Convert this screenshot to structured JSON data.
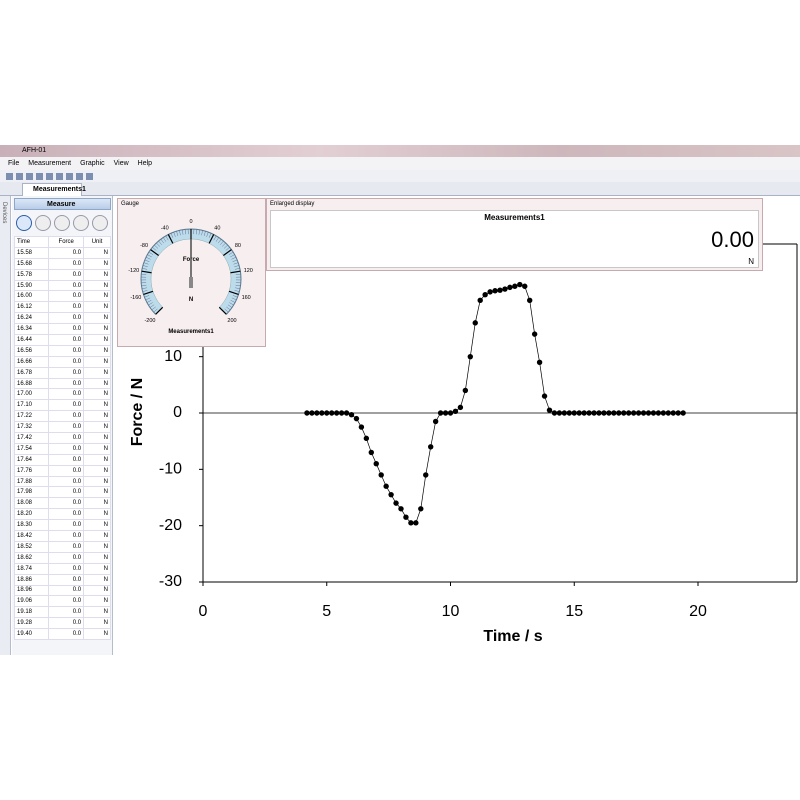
{
  "window": {
    "title": "AFH-01",
    "menu": [
      "File",
      "Measurement",
      "Graphic",
      "View",
      "Help"
    ],
    "tab": "Measurements1",
    "sidebar": "Devices"
  },
  "measure_panel": {
    "label": "Measure",
    "columns": [
      "Time",
      "Force",
      "Unit"
    ],
    "rows": [
      [
        "15.58",
        "0.0",
        "N"
      ],
      [
        "15.68",
        "0.0",
        "N"
      ],
      [
        "15.78",
        "0.0",
        "N"
      ],
      [
        "15.90",
        "0.0",
        "N"
      ],
      [
        "16.00",
        "0.0",
        "N"
      ],
      [
        "16.12",
        "0.0",
        "N"
      ],
      [
        "16.24",
        "0.0",
        "N"
      ],
      [
        "16.34",
        "0.0",
        "N"
      ],
      [
        "16.44",
        "0.0",
        "N"
      ],
      [
        "16.56",
        "0.0",
        "N"
      ],
      [
        "16.66",
        "0.0",
        "N"
      ],
      [
        "16.78",
        "0.0",
        "N"
      ],
      [
        "16.88",
        "0.0",
        "N"
      ],
      [
        "17.00",
        "0.0",
        "N"
      ],
      [
        "17.10",
        "0.0",
        "N"
      ],
      [
        "17.22",
        "0.0",
        "N"
      ],
      [
        "17.32",
        "0.0",
        "N"
      ],
      [
        "17.42",
        "0.0",
        "N"
      ],
      [
        "17.54",
        "0.0",
        "N"
      ],
      [
        "17.64",
        "0.0",
        "N"
      ],
      [
        "17.76",
        "0.0",
        "N"
      ],
      [
        "17.88",
        "0.0",
        "N"
      ],
      [
        "17.98",
        "0.0",
        "N"
      ],
      [
        "18.08",
        "0.0",
        "N"
      ],
      [
        "18.20",
        "0.0",
        "N"
      ],
      [
        "18.30",
        "0.0",
        "N"
      ],
      [
        "18.42",
        "0.0",
        "N"
      ],
      [
        "18.52",
        "0.0",
        "N"
      ],
      [
        "18.62",
        "0.0",
        "N"
      ],
      [
        "18.74",
        "0.0",
        "N"
      ],
      [
        "18.86",
        "0.0",
        "N"
      ],
      [
        "18.96",
        "0.0",
        "N"
      ],
      [
        "19.06",
        "0.0",
        "N"
      ],
      [
        "19.18",
        "0.0",
        "N"
      ],
      [
        "19.28",
        "0.0",
        "N"
      ],
      [
        "19.40",
        "0.0",
        "N"
      ]
    ]
  },
  "gauge": {
    "title": "Gauge",
    "quantity": "Force",
    "unit": "N",
    "source": "Measurements1",
    "ticks": [
      -200,
      -160,
      -120,
      -80,
      -40,
      0,
      40,
      80,
      120,
      160,
      200
    ],
    "value": 0
  },
  "display": {
    "title": "Enlarged display",
    "source": "Measurements1",
    "value": "0.00",
    "unit": "N"
  },
  "chart_data": {
    "type": "scatter",
    "xlabel": "Time / s",
    "ylabel": "Force / N",
    "color": "#000000",
    "connect_points": true,
    "zero_line": true,
    "x": [
      4.2,
      4.4,
      4.6,
      4.8,
      5.0,
      5.2,
      5.4,
      5.6,
      5.8,
      6.0,
      6.2,
      6.4,
      6.6,
      6.8,
      7.0,
      7.2,
      7.4,
      7.6,
      7.8,
      8.0,
      8.2,
      8.4,
      8.6,
      8.8,
      9.0,
      9.2,
      9.4,
      9.6,
      9.8,
      10.0,
      10.2,
      10.4,
      10.6,
      10.8,
      11.0,
      11.2,
      11.4,
      11.6,
      11.8,
      12.0,
      12.2,
      12.4,
      12.6,
      12.8,
      13.0,
      13.2,
      13.4,
      13.6,
      13.8,
      14.0,
      14.2,
      14.4,
      14.6,
      14.8,
      15.0,
      15.2,
      15.4,
      15.6,
      15.8,
      16.0,
      16.2,
      16.4,
      16.6,
      16.8,
      17.0,
      17.2,
      17.4,
      17.6,
      17.8,
      18.0,
      18.2,
      18.4,
      18.6,
      18.8,
      19.0,
      19.2,
      19.4
    ],
    "values": [
      0,
      0,
      0,
      0,
      0,
      0,
      0,
      0,
      0,
      -0.3,
      -1,
      -2.5,
      -4.5,
      -7,
      -9,
      -11,
      -13,
      -14.5,
      -16,
      -17,
      -18.5,
      -19.5,
      -19.5,
      -17,
      -11,
      -6,
      -1.5,
      0,
      0,
      0,
      0.3,
      1,
      4,
      10,
      16,
      20,
      21,
      21.5,
      21.7,
      21.8,
      22,
      22.3,
      22.5,
      22.8,
      22.5,
      20,
      14,
      9,
      3,
      0.5,
      0,
      0,
      0,
      0,
      0,
      0,
      0,
      0,
      0,
      0,
      0,
      0,
      0,
      0,
      0,
      0,
      0,
      0,
      0,
      0,
      0,
      0,
      0,
      0,
      0,
      0,
      0
    ],
    "xlim": [
      0,
      24
    ],
    "ylim": [
      -30,
      30
    ],
    "xticks": [
      0,
      5,
      10,
      15,
      20
    ],
    "yticks": [
      -30,
      -20,
      -10,
      0,
      10
    ]
  }
}
